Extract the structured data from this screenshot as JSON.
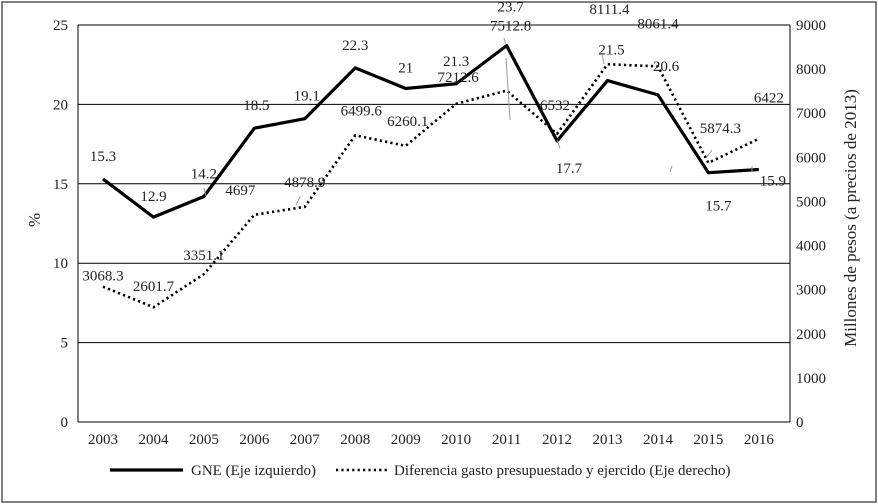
{
  "chart_data": {
    "type": "line",
    "categories": [
      "2003",
      "2004",
      "2005",
      "2006",
      "2007",
      "2008",
      "2009",
      "2010",
      "2011",
      "2012",
      "2013",
      "2014",
      "2015",
      "2016"
    ],
    "series": [
      {
        "name": "GNE (Eje izquierdo)",
        "axis": "left",
        "style": "solid",
        "values": [
          15.3,
          12.9,
          14.2,
          18.5,
          19.1,
          22.3,
          21,
          21.3,
          23.7,
          17.7,
          21.5,
          20.6,
          15.7,
          15.9
        ],
        "labels": [
          "15.3",
          "12.9",
          "14.2",
          "18.5",
          "19.1",
          "22.3",
          "21",
          "21.3",
          "23.7",
          "17.7",
          "21.5",
          "20.6",
          "15.7",
          "15.9"
        ]
      },
      {
        "name": "Diferencia gasto presupuestado y ejercido (Eje derecho)",
        "axis": "right",
        "style": "dotted",
        "values": [
          3068.3,
          2601.7,
          3351.1,
          4697,
          4878.9,
          6499.6,
          6260.1,
          7212.6,
          7512.8,
          6532,
          8111.4,
          8061.4,
          5874.3,
          6422
        ],
        "labels": [
          "3068.3",
          "2601.7",
          "3351.1",
          "4697",
          "4878.9",
          "6499.6",
          "6260.1",
          "7212.6",
          "7512.8",
          "6532",
          "8111.4",
          "8061.4",
          "5874.3",
          "6422"
        ]
      }
    ],
    "y_left": {
      "label": "%",
      "range": [
        0,
        25
      ],
      "ticks": [
        0,
        5,
        10,
        15,
        20,
        25
      ]
    },
    "y_right": {
      "label": "Millones de pesos (a precios de 2013)",
      "range": [
        0,
        9000
      ],
      "ticks": [
        0,
        1000,
        2000,
        3000,
        4000,
        5000,
        6000,
        7000,
        8000,
        9000
      ]
    },
    "grid": "horizontal",
    "legend": "bottom"
  }
}
